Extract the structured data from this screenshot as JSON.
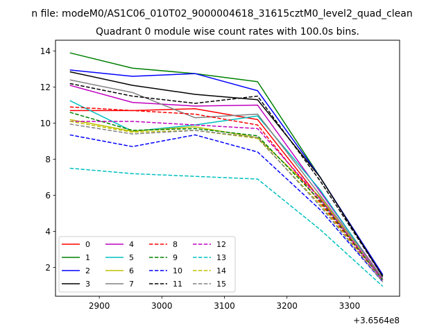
{
  "chart_data": {
    "type": "line",
    "suptitle": "n file: modeM0/AS1C06_010T02_9000004618_31615cztM0_level2_quad_clean",
    "title": "Quadrant 0 module wise count rates with 100.0s bins.",
    "xlabel": "",
    "ylabel": "",
    "x_offset_label": "+3.6564e8",
    "x": [
      2853,
      2953,
      3053,
      3153,
      3253,
      3353
    ],
    "xlim": [
      2830,
      3380
    ],
    "ylim": [
      0.4,
      14.6
    ],
    "xticks": [
      2900,
      3000,
      3100,
      3200,
      3300
    ],
    "yticks": [
      2,
      4,
      6,
      8,
      10,
      12,
      14
    ],
    "grid": false,
    "legend_position": "lower-left",
    "legend_columns": 4,
    "series": [
      {
        "name": "0",
        "color": "#ff0000",
        "dash": "solid",
        "values": [
          10.7,
          10.7,
          10.8,
          10.2,
          5.8,
          1.3
        ]
      },
      {
        "name": "1",
        "color": "#008000",
        "dash": "solid",
        "values": [
          13.9,
          13.05,
          12.75,
          12.3,
          7.0,
          1.55
        ]
      },
      {
        "name": "2",
        "color": "#0000ff",
        "dash": "solid",
        "values": [
          12.95,
          12.6,
          12.75,
          11.8,
          7.0,
          1.6
        ]
      },
      {
        "name": "3",
        "color": "#000000",
        "dash": "solid",
        "values": [
          12.85,
          12.1,
          11.6,
          11.3,
          7.0,
          1.5
        ]
      },
      {
        "name": "4",
        "color": "#bf00bf",
        "dash": "solid",
        "values": [
          12.1,
          11.15,
          10.95,
          11.0,
          6.2,
          1.4
        ]
      },
      {
        "name": "5",
        "color": "#00bfbf",
        "dash": "solid",
        "values": [
          11.25,
          9.55,
          9.9,
          10.4,
          6.3,
          1.3
        ]
      },
      {
        "name": "6",
        "color": "#bfbf00",
        "dash": "solid",
        "values": [
          10.2,
          9.55,
          9.8,
          9.2,
          5.9,
          1.3
        ]
      },
      {
        "name": "7",
        "color": "#808080",
        "dash": "solid",
        "values": [
          12.4,
          11.7,
          10.3,
          10.5,
          6.0,
          1.4
        ]
      },
      {
        "name": "8",
        "color": "#ff0000",
        "dash": "dashed",
        "values": [
          10.9,
          10.7,
          10.5,
          9.9,
          5.6,
          1.3
        ]
      },
      {
        "name": "9",
        "color": "#008000",
        "dash": "dashed",
        "values": [
          10.6,
          9.6,
          9.7,
          9.3,
          5.7,
          1.3
        ]
      },
      {
        "name": "10",
        "color": "#0000ff",
        "dash": "dashed",
        "values": [
          9.35,
          8.7,
          9.35,
          8.4,
          5.2,
          1.2
        ]
      },
      {
        "name": "11",
        "color": "#000000",
        "dash": "dashed",
        "values": [
          12.2,
          11.5,
          11.1,
          11.5,
          6.8,
          1.5
        ]
      },
      {
        "name": "12",
        "color": "#bf00bf",
        "dash": "dashed",
        "values": [
          10.1,
          10.1,
          9.9,
          9.7,
          5.8,
          1.3
        ]
      },
      {
        "name": "13",
        "color": "#00bfbf",
        "dash": "dashed",
        "values": [
          7.5,
          7.2,
          7.05,
          6.9,
          4.1,
          0.95
        ]
      },
      {
        "name": "14",
        "color": "#bfbf00",
        "dash": "dashed",
        "values": [
          10.1,
          9.5,
          9.6,
          9.15,
          5.5,
          1.2
        ]
      },
      {
        "name": "15",
        "color": "#808080",
        "dash": "dashed",
        "values": [
          9.95,
          9.4,
          9.6,
          9.2,
          5.4,
          1.2
        ]
      }
    ]
  }
}
